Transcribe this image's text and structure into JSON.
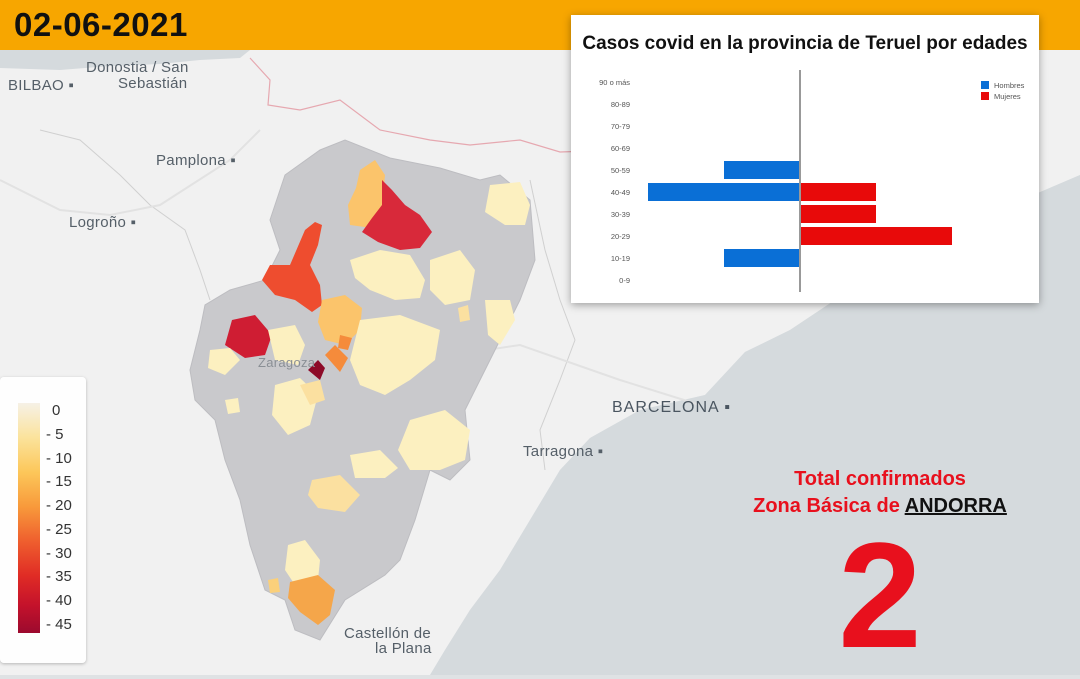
{
  "date": "02-06-2021",
  "map_labels": {
    "bilbao": "BILBAO",
    "donostia": "Donostia / San",
    "sebastian": "Sebastián",
    "pamplona": "Pamplona",
    "logrono": "Logroño",
    "zaragoza": "Zaragoza",
    "barcelona": "BARCELONA",
    "tarragona": "Tarragona",
    "castellon1": "Castellón de",
    "castellon2": "la Plana"
  },
  "legend": {
    "labels": [
      "0",
      "5",
      "10",
      "15",
      "20",
      "25",
      "30",
      "35",
      "40",
      "45"
    ],
    "colors": [
      "#f6f1e6",
      "#fbe39c",
      "#fcc75a",
      "#f89a3b",
      "#ef5f2e",
      "#e02c25",
      "#c4122b",
      "#9c0a2e"
    ]
  },
  "chart_data": {
    "type": "bar",
    "orientation": "horizontal-population-pyramid",
    "title": "Casos covid en la provincia de Teruel por edades",
    "categories": [
      "90 o más",
      "80-89",
      "70-79",
      "60-69",
      "50-59",
      "40-49",
      "30-39",
      "20-29",
      "10-19",
      "0-9"
    ],
    "series": [
      {
        "name": "Hombres",
        "color": "#0a6fd6",
        "values": [
          0,
          0,
          0,
          0,
          1,
          2,
          0,
          0,
          1,
          0
        ]
      },
      {
        "name": "Mujeres",
        "color": "#e80a0a",
        "values": [
          0,
          0,
          0,
          0,
          0,
          1,
          1,
          2,
          0,
          0
        ]
      }
    ],
    "legend_position": "top-right",
    "grid": false
  },
  "total": {
    "line1": "Total confirmados",
    "line2_prefix": "Zona Básica de",
    "zone": "ANDORRA",
    "value": "2"
  }
}
